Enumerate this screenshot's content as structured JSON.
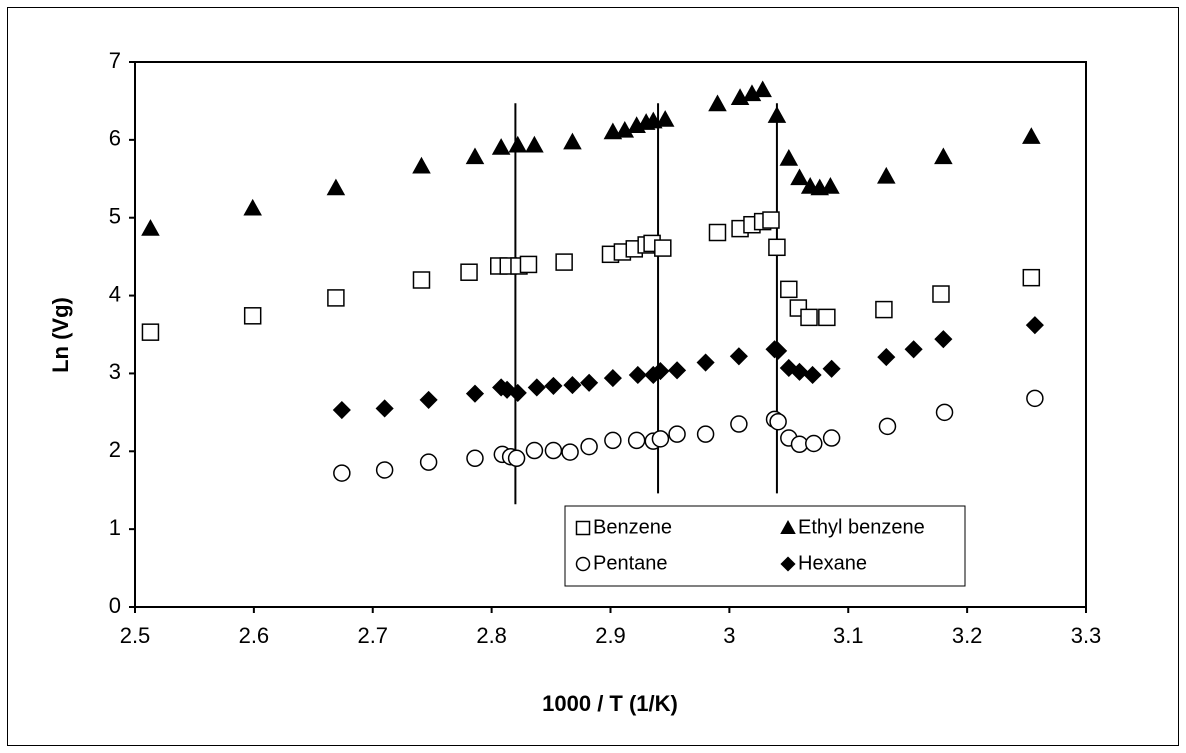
{
  "chart_data": {
    "type": "scatter",
    "xlabel": "1000 / T  (1/K)",
    "ylabel": "Ln (Vg)",
    "xlim": [
      2.5,
      3.3
    ],
    "xticks": [
      2.5,
      2.6,
      2.7,
      2.8,
      2.9,
      3,
      3.1,
      3.2,
      3.3
    ],
    "ylim": [
      0,
      7
    ],
    "yticks": [
      0,
      1,
      2,
      3,
      4,
      5,
      6,
      7
    ],
    "grid": false,
    "legend": "lower right",
    "vlines": [
      {
        "x": 2.82,
        "y": [
          1.32,
          6.47
        ]
      },
      {
        "x": 2.94,
        "y": [
          1.46,
          6.47
        ]
      },
      {
        "x": 3.04,
        "y": [
          1.46,
          6.47
        ]
      }
    ],
    "series": [
      {
        "name": "Benzene",
        "marker": "square",
        "filled": false,
        "color": "#000000",
        "x": [
          2.513,
          2.599,
          2.669,
          2.741,
          2.781,
          2.806,
          2.814,
          2.823,
          2.831,
          2.861,
          2.9,
          2.91,
          2.92,
          2.93,
          2.935,
          2.944,
          2.99,
          3.009,
          3.019,
          3.028,
          3.035,
          3.04,
          3.05,
          3.058,
          3.067,
          3.082,
          3.13,
          3.178,
          3.254
        ],
        "values": [
          3.53,
          3.74,
          3.97,
          4.2,
          4.3,
          4.38,
          4.38,
          4.38,
          4.4,
          4.43,
          4.53,
          4.56,
          4.6,
          4.65,
          4.67,
          4.61,
          4.81,
          4.86,
          4.91,
          4.95,
          4.97,
          4.62,
          4.08,
          3.84,
          3.72,
          3.72,
          3.82,
          4.02,
          4.23
        ]
      },
      {
        "name": "Ethyl benzene",
        "marker": "triangle",
        "filled": true,
        "color": "#000000",
        "x": [
          2.513,
          2.599,
          2.669,
          2.741,
          2.786,
          2.808,
          2.822,
          2.836,
          2.868,
          2.902,
          2.912,
          2.922,
          2.93,
          2.936,
          2.946,
          2.99,
          3.009,
          3.019,
          3.028,
          3.04,
          3.05,
          3.059,
          3.068,
          3.076,
          3.085,
          3.132,
          3.18,
          3.254
        ],
        "values": [
          4.86,
          5.12,
          5.38,
          5.66,
          5.78,
          5.9,
          5.93,
          5.93,
          5.97,
          6.1,
          6.12,
          6.18,
          6.22,
          6.24,
          6.26,
          6.46,
          6.54,
          6.59,
          6.64,
          6.31,
          5.76,
          5.51,
          5.4,
          5.38,
          5.4,
          5.53,
          5.78,
          6.04
        ]
      },
      {
        "name": "Pentane",
        "marker": "circle",
        "filled": false,
        "color": "#000000",
        "x": [
          2.674,
          2.71,
          2.747,
          2.786,
          2.809,
          2.816,
          2.821,
          2.836,
          2.852,
          2.866,
          2.882,
          2.902,
          2.922,
          2.936,
          2.942,
          2.956,
          2.98,
          3.008,
          3.038,
          3.041,
          3.05,
          3.059,
          3.071,
          3.086,
          3.133,
          3.181,
          3.257
        ],
        "values": [
          1.72,
          1.76,
          1.86,
          1.91,
          1.96,
          1.93,
          1.91,
          2.01,
          2.01,
          1.99,
          2.06,
          2.14,
          2.14,
          2.13,
          2.16,
          2.22,
          2.22,
          2.35,
          2.41,
          2.38,
          2.17,
          2.09,
          2.1,
          2.17,
          2.32,
          2.5,
          2.68
        ]
      },
      {
        "name": "Hexane",
        "marker": "diamond",
        "filled": true,
        "color": "#000000",
        "x": [
          2.674,
          2.71,
          2.747,
          2.786,
          2.808,
          2.813,
          2.822,
          2.838,
          2.852,
          2.868,
          2.882,
          2.902,
          2.923,
          2.936,
          2.942,
          2.956,
          2.98,
          3.008,
          3.038,
          3.041,
          3.05,
          3.059,
          3.07,
          3.086,
          3.132,
          3.155,
          3.18,
          3.257
        ],
        "values": [
          2.53,
          2.55,
          2.66,
          2.74,
          2.82,
          2.79,
          2.75,
          2.82,
          2.84,
          2.85,
          2.88,
          2.94,
          2.98,
          2.98,
          3.03,
          3.04,
          3.14,
          3.22,
          3.31,
          3.29,
          3.07,
          3.02,
          2.98,
          3.06,
          3.21,
          3.31,
          3.44,
          3.62
        ]
      }
    ]
  }
}
